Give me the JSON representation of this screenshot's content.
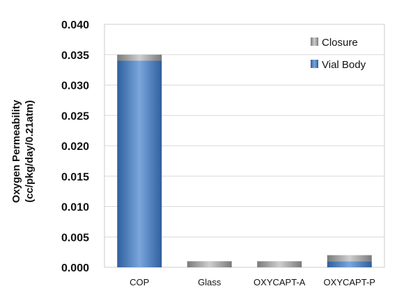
{
  "chart_data": {
    "type": "bar",
    "stacked": true,
    "categories": [
      "COP",
      "Glass",
      "OXYCAPT-A",
      "OXYCAPT-P"
    ],
    "series": [
      {
        "name": "Vial Body",
        "values": [
          0.034,
          0.0,
          0.0,
          0.001
        ]
      },
      {
        "name": "Closure",
        "values": [
          0.001,
          0.001,
          0.001,
          0.001
        ]
      }
    ],
    "ylabel_line1": "Oxygen Permeability",
    "ylabel_line2": "(cc/pkg/day/0.21atm)",
    "ylim": [
      0,
      0.04
    ],
    "yticks": [
      "0.000",
      "0.005",
      "0.010",
      "0.015",
      "0.020",
      "0.025",
      "0.030",
      "0.035",
      "0.040"
    ],
    "grid": true,
    "legend_position": "top-right",
    "colors": {
      "vial_body": "#3f73b8",
      "closure": "#9a9a9a",
      "grid": "#d9d9d9"
    }
  }
}
